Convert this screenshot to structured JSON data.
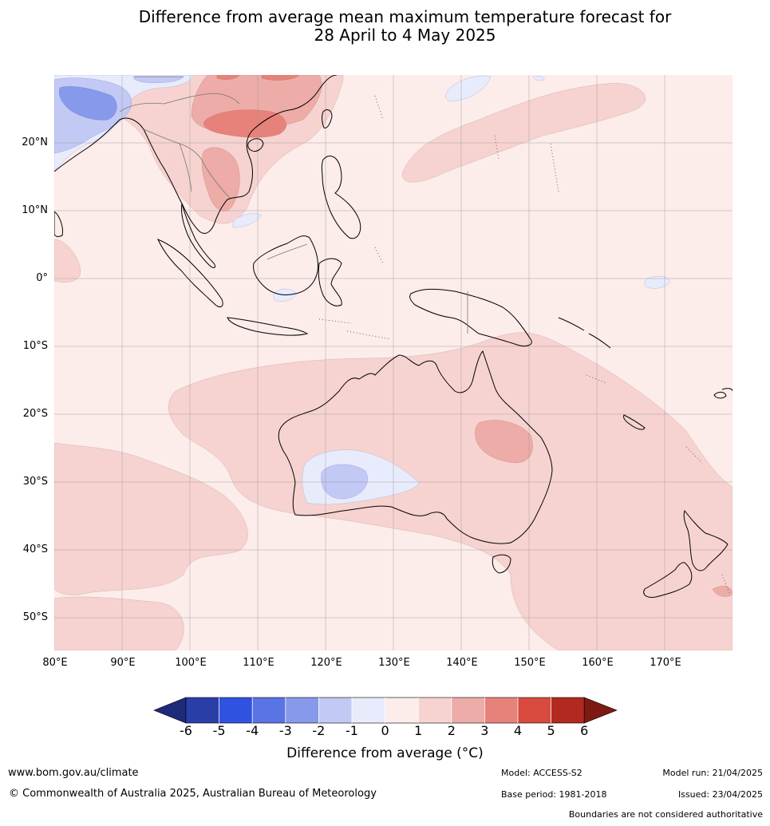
{
  "title_line1": "Difference from average mean maximum temperature forecast for",
  "title_line2": "28 April to 4 May 2025",
  "lat_labels": [
    "20°N",
    "10°N",
    "0°",
    "10°S",
    "20°S",
    "30°S",
    "40°S",
    "50°S"
  ],
  "lon_labels": [
    "80°E",
    "90°E",
    "100°E",
    "110°E",
    "120°E",
    "130°E",
    "140°E",
    "150°E",
    "160°E",
    "170°E"
  ],
  "colorbar": {
    "ticks": [
      "-6",
      "-5",
      "-4",
      "-3",
      "-2",
      "-1",
      "0",
      "1",
      "2",
      "3",
      "4",
      "5",
      "6"
    ],
    "colors": [
      "#1e2a7a",
      "#2a3ea8",
      "#3052e0",
      "#5a74e4",
      "#8799ea",
      "#c2c9f4",
      "#e8ebfb",
      "#fcecea",
      "#f6d3d0",
      "#edaca7",
      "#e7827b",
      "#d84a3e",
      "#b1291f",
      "#7d1a13"
    ],
    "label": "Difference from average (°C)"
  },
  "map_colors": {
    "base": "#fcecea",
    "warm1": "#f6d3d0",
    "warm2": "#edaca7",
    "warm3": "#e7827b",
    "cool1": "#e8ebfb",
    "cool2": "#c2c9f4",
    "cool3": "#8799ea"
  },
  "footer": {
    "url": "www.bom.gov.au/climate",
    "copyright": "© Commonwealth of Australia 2025, Australian Bureau of Meteorology",
    "model": "Model: ACCESS-S2",
    "model_run": "Model run: 21/04/2025",
    "base_period": "Base period: 1981-2018",
    "issued": "Issued: 23/04/2025",
    "disclaimer": "Boundaries are not considered authoritative"
  }
}
